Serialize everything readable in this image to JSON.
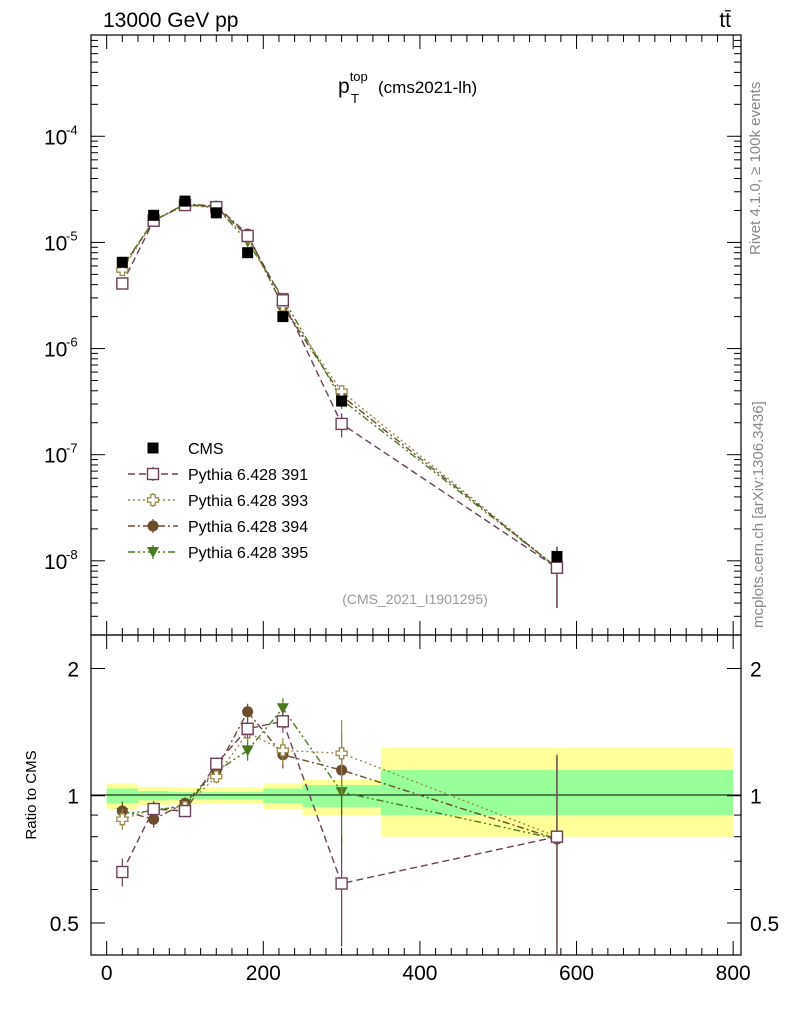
{
  "header": {
    "left_title": "13000 GeV pp",
    "right_title": "tt̄"
  },
  "side_text": {
    "rivet": "Rivet 4.1.0, ≥ 100k events",
    "mcplots": "mcplots.cern.ch [arXiv:1306.3436]"
  },
  "chart_data": [
    {
      "type": "scatter",
      "name": "main",
      "title_main": "p",
      "title_sup": "top",
      "title_sub": "T",
      "title_rest": "(cms2021-lh)",
      "analysis_label": "(CMS_2021_I1901295)",
      "x_scale": "linear",
      "y_scale": "log",
      "xlim": [
        -20,
        810
      ],
      "ylim": [
        2e-09,
        0.0009
      ],
      "y_ticks": [
        {
          "value": 0.0001,
          "label": "10",
          "exp": "-4"
        },
        {
          "value": 1e-05,
          "label": "10",
          "exp": "-5"
        },
        {
          "value": 1e-06,
          "label": "10",
          "exp": "-6"
        },
        {
          "value": 1e-07,
          "label": "10",
          "exp": "-7"
        },
        {
          "value": 1e-08,
          "label": "10",
          "exp": "-8"
        }
      ],
      "legend_position": "lower-left",
      "series": [
        {
          "name": "CMS",
          "color": "#000000",
          "marker": "filled-square",
          "line": "none",
          "x": [
            20,
            60,
            100,
            140,
            180,
            225,
            300,
            575
          ],
          "y": [
            6.5e-06,
            1.8e-05,
            2.45e-05,
            1.9e-05,
            8e-06,
            2e-06,
            3.2e-07,
            1.1e-08
          ]
        },
        {
          "name": "Pythia 6.428 391",
          "color": "#6d3f58",
          "marker": "open-square",
          "line": "dash",
          "x": [
            20,
            60,
            100,
            140,
            180,
            225,
            300,
            575
          ],
          "y": [
            4.1e-06,
            1.6e-05,
            2.25e-05,
            2.15e-05,
            1.15e-05,
            2.85e-06,
            1.95e-07,
            8.6e-09
          ],
          "yerr": [
            3e-07,
            7e-07,
            7e-07,
            7e-07,
            5e-07,
            2e-07,
            5e-08,
            5e-09
          ]
        },
        {
          "name": "Pythia 6.428 393",
          "color": "#9b8a4a",
          "marker": "open-cross",
          "line": "dot",
          "x": [
            20,
            60,
            100,
            140,
            180,
            225,
            300,
            575
          ],
          "y": [
            5.5e-06,
            1.6e-05,
            2.25e-05,
            2.1e-05,
            1.12e-05,
            2.55e-06,
            3.95e-07,
            8.6e-09
          ],
          "yerr": [
            3e-07,
            7e-07,
            7e-07,
            7e-07,
            5e-07,
            2e-07,
            6e-08,
            5e-09
          ]
        },
        {
          "name": "Pythia 6.428 394",
          "color": "#6b4c2c",
          "marker": "filled-circle",
          "line": "dashdot",
          "x": [
            20,
            60,
            100,
            140,
            180,
            225,
            300,
            575
          ],
          "y": [
            5.8e-06,
            1.6e-05,
            2.3e-05,
            2.2e-05,
            1.2e-05,
            2.5e-06,
            3.6e-07,
            8.6e-09
          ],
          "yerr": [
            3e-07,
            7e-07,
            7e-07,
            7e-07,
            5e-07,
            2e-07,
            6e-08,
            5e-09
          ]
        },
        {
          "name": "Pythia 6.428 395",
          "color": "#4a7a1e",
          "marker": "filled-triangle-down",
          "line": "dashdotdot",
          "x": [
            20,
            60,
            100,
            140,
            180,
            225,
            300,
            575
          ],
          "y": [
            5.9e-06,
            1.6e-05,
            2.3e-05,
            2.15e-05,
            1.02e-05,
            3e-06,
            3.3e-07,
            8.6e-09
          ],
          "yerr": [
            3e-07,
            7e-07,
            7e-07,
            7e-07,
            5e-07,
            2e-07,
            6e-08,
            5e-09
          ]
        }
      ]
    },
    {
      "type": "scatter",
      "name": "ratio",
      "ylabel": "Ratio to CMS",
      "x_scale": "linear",
      "y_scale": "log",
      "xlim": [
        -20,
        810
      ],
      "ylim": [
        0.42,
        2.4
      ],
      "y_ticks": [
        {
          "value": 0.5,
          "label": "0.5"
        },
        {
          "value": 1,
          "label": "1"
        },
        {
          "value": 2,
          "label": "2"
        }
      ],
      "x_ticks": [
        {
          "value": 0,
          "label": "0"
        },
        {
          "value": 200,
          "label": "200"
        },
        {
          "value": 400,
          "label": "400"
        },
        {
          "value": 600,
          "label": "600"
        },
        {
          "value": 800,
          "label": "800"
        }
      ],
      "bands": [
        {
          "x0": 0,
          "x1": 40,
          "stat_lo": 0.96,
          "stat_hi": 1.04,
          "tot_lo": 0.93,
          "tot_hi": 1.07
        },
        {
          "x0": 40,
          "x1": 80,
          "stat_lo": 0.975,
          "stat_hi": 1.025,
          "tot_lo": 0.95,
          "tot_hi": 1.05
        },
        {
          "x0": 80,
          "x1": 120,
          "stat_lo": 0.98,
          "stat_hi": 1.02,
          "tot_lo": 0.955,
          "tot_hi": 1.045
        },
        {
          "x0": 120,
          "x1": 160,
          "stat_lo": 0.98,
          "stat_hi": 1.02,
          "tot_lo": 0.955,
          "tot_hi": 1.045
        },
        {
          "x0": 160,
          "x1": 200,
          "stat_lo": 0.98,
          "stat_hi": 1.02,
          "tot_lo": 0.955,
          "tot_hi": 1.045
        },
        {
          "x0": 200,
          "x1": 250,
          "stat_lo": 0.96,
          "stat_hi": 1.04,
          "tot_lo": 0.93,
          "tot_hi": 1.07
        },
        {
          "x0": 250,
          "x1": 350,
          "stat_lo": 0.94,
          "stat_hi": 1.06,
          "tot_lo": 0.9,
          "tot_hi": 1.09
        },
        {
          "x0": 350,
          "x1": 800,
          "stat_lo": 0.9,
          "stat_hi": 1.15,
          "tot_lo": 0.8,
          "tot_hi": 1.3
        }
      ],
      "series": [
        {
          "name": "Pythia 6.428 391",
          "color": "#6d3f58",
          "marker": "open-square",
          "line": "dash",
          "x": [
            20,
            60,
            100,
            140,
            180,
            225,
            300,
            575
          ],
          "y": [
            0.66,
            0.93,
            0.92,
            1.19,
            1.44,
            1.5,
            0.62,
            0.8
          ],
          "yerr": [
            0.05,
            0.04,
            0.03,
            0.04,
            0.07,
            0.09,
            0.18,
            0.45
          ]
        },
        {
          "name": "Pythia 6.428 393",
          "color": "#9b8a4a",
          "marker": "open-cross",
          "line": "dot",
          "x": [
            20,
            60,
            100,
            140,
            180,
            225,
            300,
            575
          ],
          "y": [
            0.88,
            0.93,
            0.94,
            1.11,
            1.41,
            1.28,
            1.26,
            0.8
          ],
          "yerr": [
            0.05,
            0.04,
            0.03,
            0.04,
            0.07,
            0.09,
            0.25,
            0.45
          ]
        },
        {
          "name": "Pythia 6.428 394",
          "color": "#6b4c2c",
          "marker": "filled-circle",
          "line": "dashdot",
          "x": [
            20,
            60,
            100,
            140,
            180,
            225,
            300,
            575
          ],
          "y": [
            0.92,
            0.88,
            0.96,
            1.15,
            1.58,
            1.25,
            1.15,
            0.79
          ],
          "yerr": [
            0.05,
            0.04,
            0.03,
            0.04,
            0.07,
            0.09,
            0.25,
            0.45
          ]
        },
        {
          "name": "Pythia 6.428 395",
          "color": "#4a7a1e",
          "marker": "filled-triangle-down",
          "line": "dashdotdot",
          "x": [
            20,
            60,
            100,
            140,
            180,
            225,
            300,
            575
          ],
          "y": [
            0.91,
            0.92,
            0.95,
            1.14,
            1.28,
            1.61,
            1.02,
            0.79
          ],
          "yerr": [
            0.05,
            0.04,
            0.03,
            0.04,
            0.07,
            0.09,
            0.25,
            0.45
          ]
        }
      ]
    }
  ]
}
